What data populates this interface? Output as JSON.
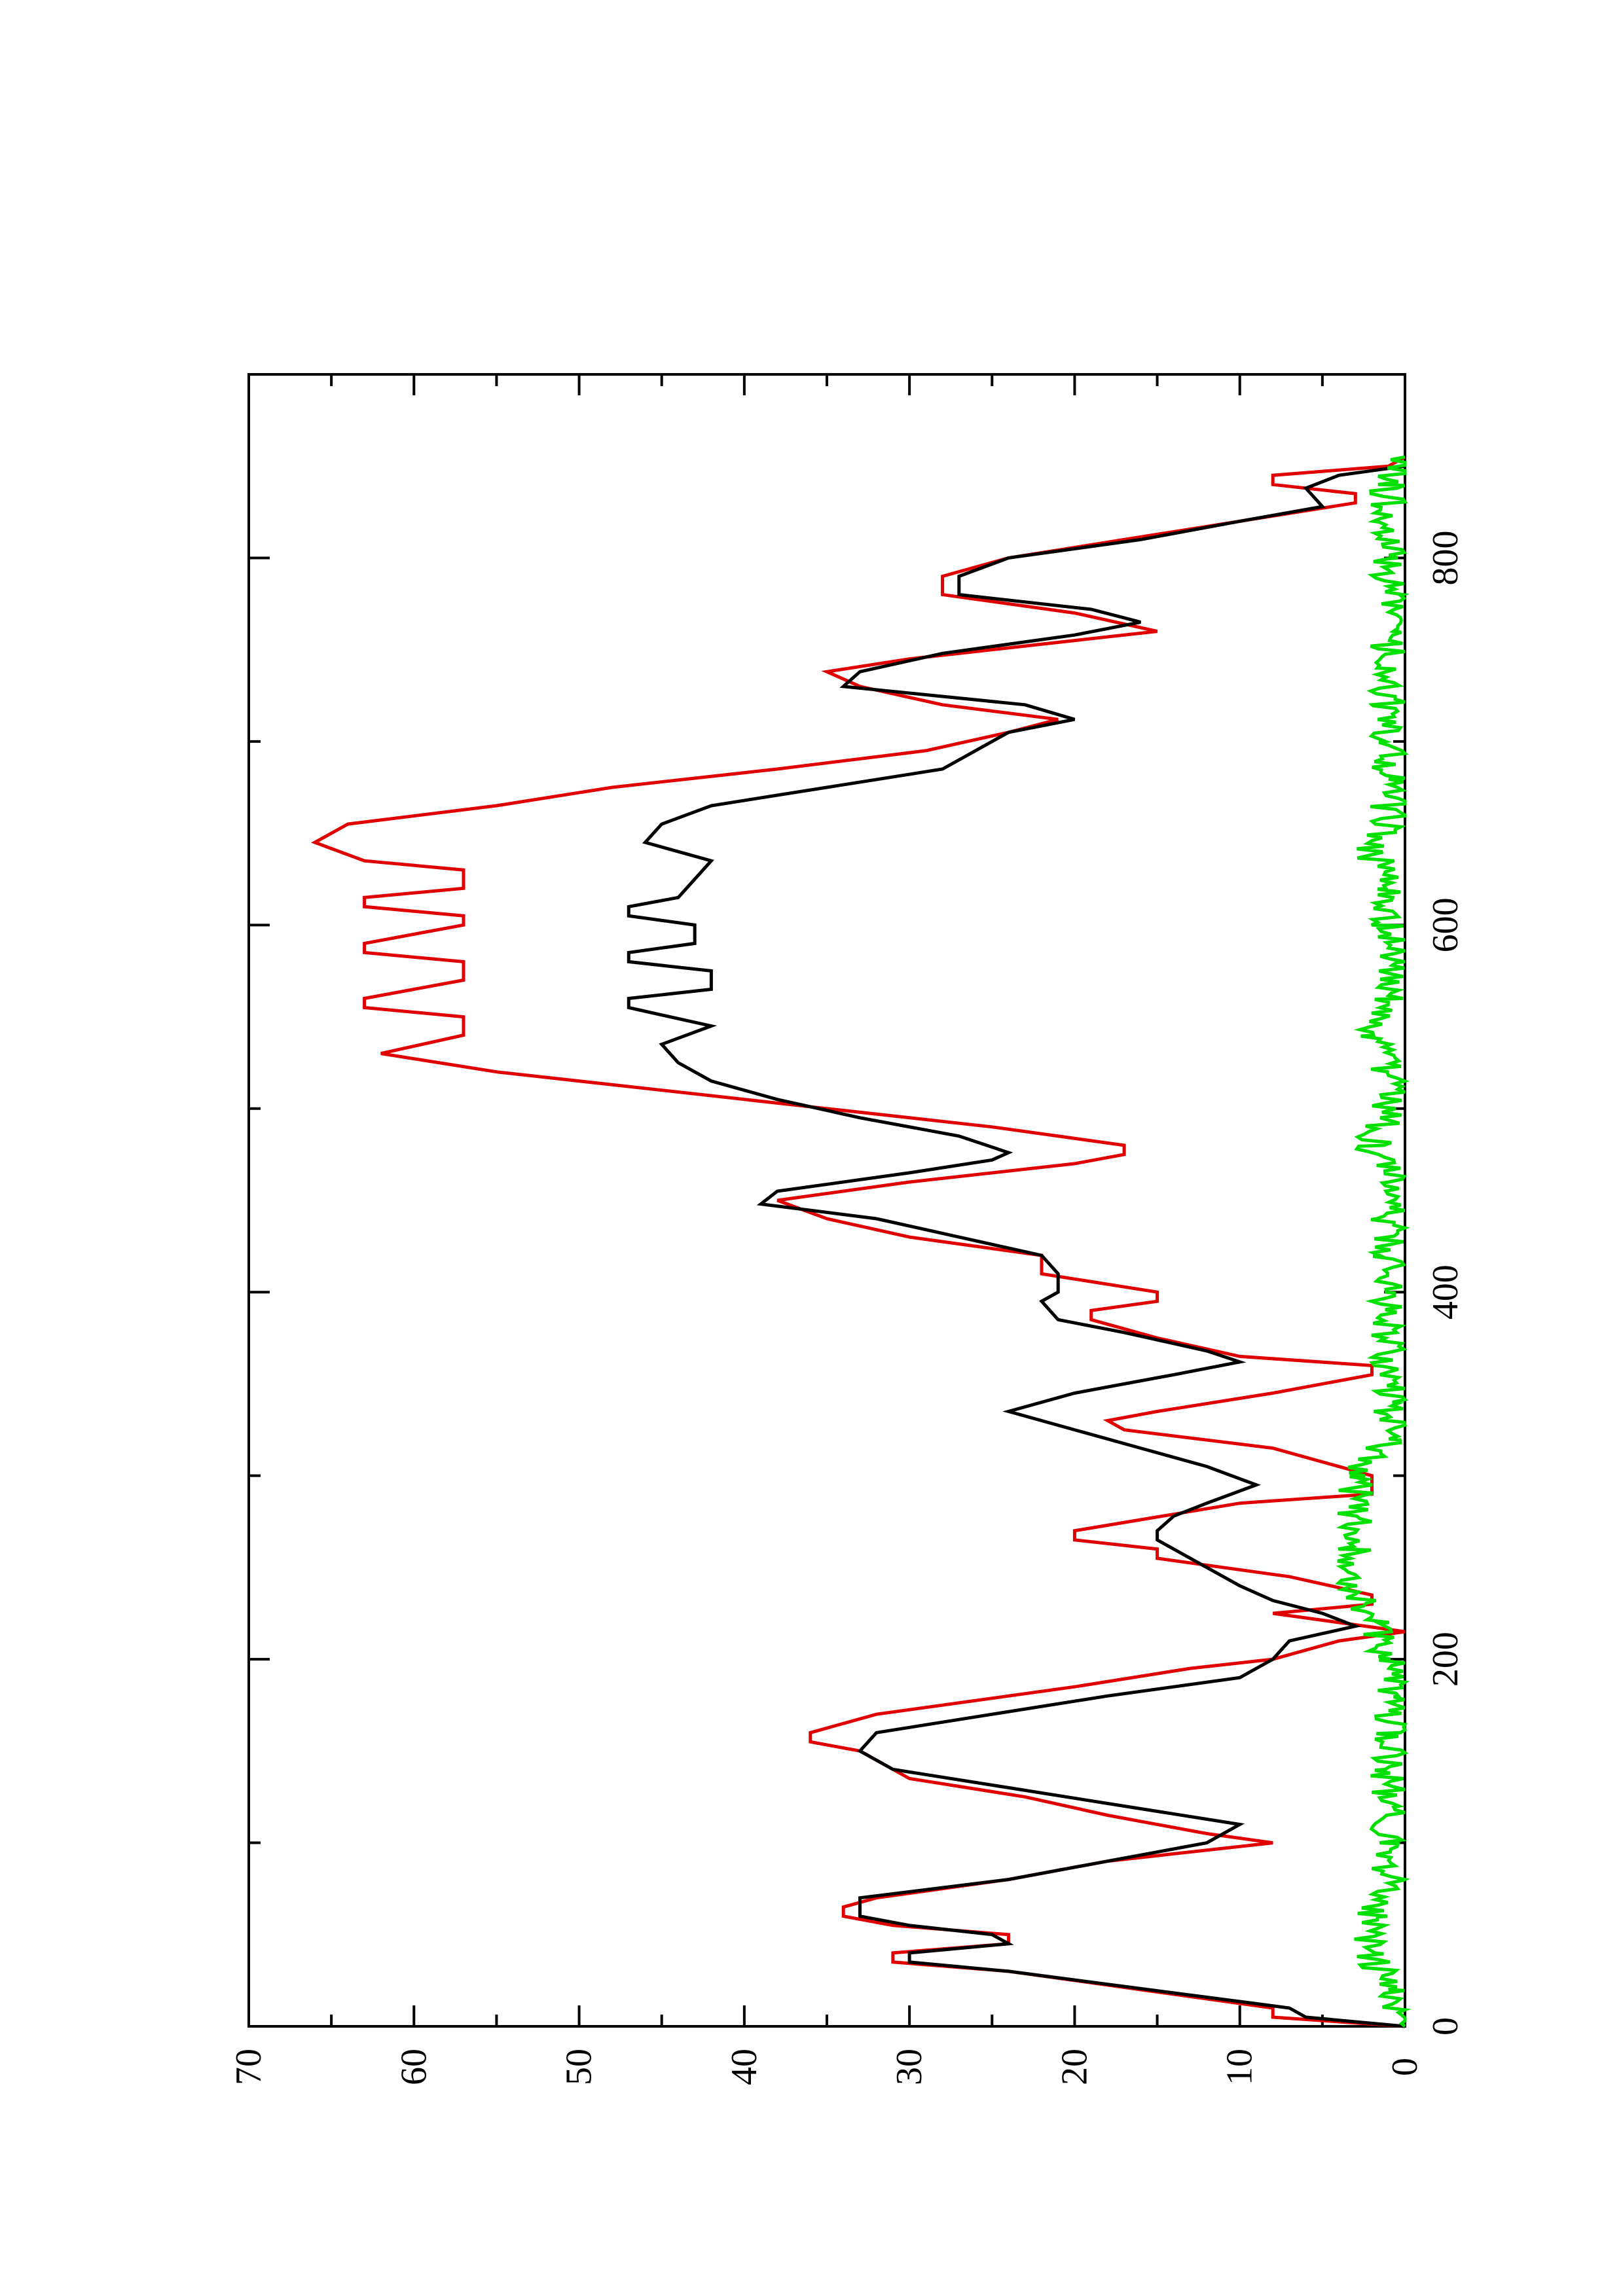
{
  "chart_data": {
    "type": "line",
    "orientation": "rotated-90-ccw",
    "title": "",
    "xlabel": "",
    "ylabel": "",
    "xlim": [
      0,
      900
    ],
    "ylim": [
      0,
      70
    ],
    "x_ticks": [
      {
        "value": 0,
        "label": "0"
      },
      {
        "value": 200,
        "label": "200"
      },
      {
        "value": 400,
        "label": "400"
      },
      {
        "value": 600,
        "label": "600"
      },
      {
        "value": 800,
        "label": "800"
      }
    ],
    "y_ticks": [
      {
        "value": 0,
        "label": "0"
      },
      {
        "value": 10,
        "label": "10"
      },
      {
        "value": 20,
        "label": "20"
      },
      {
        "value": 30,
        "label": "30"
      },
      {
        "value": 40,
        "label": "40"
      },
      {
        "value": 50,
        "label": "50"
      },
      {
        "value": 60,
        "label": "60"
      },
      {
        "value": 70,
        "label": "70"
      }
    ],
    "grid": false,
    "legend": "none",
    "series": [
      {
        "id": "red",
        "color": "#e00000",
        "points": [
          [
            0,
            0
          ],
          [
            5,
            8
          ],
          [
            10,
            8
          ],
          [
            30,
            24
          ],
          [
            35,
            31
          ],
          [
            40,
            31
          ],
          [
            45,
            24
          ],
          [
            50,
            24
          ],
          [
            55,
            31
          ],
          [
            60,
            34
          ],
          [
            65,
            34
          ],
          [
            70,
            32
          ],
          [
            80,
            24
          ],
          [
            90,
            18
          ],
          [
            100,
            8
          ],
          [
            105,
            12
          ],
          [
            115,
            18
          ],
          [
            125,
            23
          ],
          [
            135,
            30
          ],
          [
            150,
            33
          ],
          [
            155,
            36
          ],
          [
            160,
            36
          ],
          [
            170,
            32
          ],
          [
            185,
            20
          ],
          [
            195,
            13
          ],
          [
            200,
            8
          ],
          [
            210,
            4
          ],
          [
            215,
            0
          ],
          [
            225,
            8
          ],
          [
            230,
            2
          ],
          [
            235,
            2
          ],
          [
            245,
            7
          ],
          [
            255,
            15
          ],
          [
            260,
            15
          ],
          [
            265,
            20
          ],
          [
            270,
            20
          ],
          [
            285,
            10
          ],
          [
            290,
            2
          ],
          [
            300,
            2
          ],
          [
            315,
            8
          ],
          [
            325,
            17
          ],
          [
            330,
            18
          ],
          [
            335,
            15
          ],
          [
            345,
            8
          ],
          [
            355,
            2
          ],
          [
            360,
            2
          ],
          [
            365,
            10
          ],
          [
            375,
            15
          ],
          [
            385,
            19
          ],
          [
            390,
            19
          ],
          [
            395,
            15
          ],
          [
            400,
            15
          ],
          [
            410,
            22
          ],
          [
            420,
            22
          ],
          [
            430,
            30
          ],
          [
            440,
            35
          ],
          [
            450,
            38
          ],
          [
            460,
            30
          ],
          [
            470,
            20
          ],
          [
            475,
            17
          ],
          [
            480,
            17
          ],
          [
            490,
            25
          ],
          [
            500,
            35
          ],
          [
            510,
            45
          ],
          [
            520,
            55
          ],
          [
            530,
            62
          ],
          [
            540,
            57
          ],
          [
            550,
            57
          ],
          [
            555,
            63
          ],
          [
            560,
            63
          ],
          [
            570,
            57
          ],
          [
            580,
            57
          ],
          [
            585,
            63
          ],
          [
            590,
            63
          ],
          [
            600,
            57
          ],
          [
            605,
            57
          ],
          [
            610,
            63
          ],
          [
            615,
            63
          ],
          [
            620,
            57
          ],
          [
            625,
            57
          ],
          [
            630,
            57
          ],
          [
            635,
            63
          ],
          [
            645,
            66
          ],
          [
            655,
            64
          ],
          [
            665,
            55
          ],
          [
            675,
            48
          ],
          [
            685,
            38
          ],
          [
            695,
            29
          ],
          [
            705,
            24
          ],
          [
            712,
            21
          ],
          [
            720,
            28
          ],
          [
            730,
            33
          ],
          [
            738,
            35
          ],
          [
            745,
            30
          ],
          [
            755,
            20
          ],
          [
            760,
            15
          ],
          [
            770,
            20
          ],
          [
            780,
            28
          ],
          [
            790,
            28
          ],
          [
            800,
            24
          ],
          [
            810,
            17
          ],
          [
            820,
            10
          ],
          [
            830,
            3
          ],
          [
            835,
            3
          ],
          [
            840,
            8
          ],
          [
            845,
            8
          ],
          [
            850,
            1
          ],
          [
            855,
            0
          ]
        ]
      },
      {
        "id": "black",
        "color": "#000000",
        "points": [
          [
            0,
            0
          ],
          [
            5,
            6
          ],
          [
            10,
            7
          ],
          [
            30,
            24
          ],
          [
            35,
            30
          ],
          [
            40,
            30
          ],
          [
            45,
            24
          ],
          [
            50,
            25
          ],
          [
            55,
            30
          ],
          [
            60,
            33
          ],
          [
            70,
            33
          ],
          [
            80,
            24
          ],
          [
            90,
            18
          ],
          [
            100,
            12
          ],
          [
            110,
            10
          ],
          [
            120,
            17
          ],
          [
            130,
            24
          ],
          [
            140,
            31
          ],
          [
            150,
            33
          ],
          [
            160,
            32
          ],
          [
            170,
            25
          ],
          [
            180,
            18
          ],
          [
            190,
            10
          ],
          [
            200,
            8
          ],
          [
            210,
            7
          ],
          [
            218,
            3
          ],
          [
            225,
            5
          ],
          [
            232,
            8
          ],
          [
            240,
            10
          ],
          [
            250,
            12
          ],
          [
            260,
            14
          ],
          [
            265,
            15
          ],
          [
            270,
            15
          ],
          [
            278,
            14
          ],
          [
            285,
            12
          ],
          [
            295,
            9
          ],
          [
            305,
            12
          ],
          [
            315,
            16
          ],
          [
            325,
            20
          ],
          [
            335,
            24
          ],
          [
            345,
            20
          ],
          [
            355,
            14
          ],
          [
            362,
            10
          ],
          [
            368,
            12
          ],
          [
            378,
            17
          ],
          [
            385,
            21
          ],
          [
            395,
            22
          ],
          [
            400,
            21
          ],
          [
            410,
            21
          ],
          [
            420,
            22
          ],
          [
            430,
            27
          ],
          [
            440,
            32
          ],
          [
            448,
            39
          ],
          [
            455,
            38
          ],
          [
            465,
            30
          ],
          [
            472,
            25
          ],
          [
            476,
            24
          ],
          [
            485,
            27
          ],
          [
            495,
            33
          ],
          [
            505,
            38
          ],
          [
            515,
            42
          ],
          [
            525,
            44
          ],
          [
            535,
            45
          ],
          [
            545,
            42
          ],
          [
            555,
            47
          ],
          [
            560,
            47
          ],
          [
            565,
            42
          ],
          [
            575,
            42
          ],
          [
            580,
            47
          ],
          [
            585,
            47
          ],
          [
            590,
            43
          ],
          [
            600,
            43
          ],
          [
            605,
            47
          ],
          [
            610,
            47
          ],
          [
            615,
            44
          ],
          [
            625,
            43
          ],
          [
            635,
            42
          ],
          [
            645,
            46
          ],
          [
            655,
            45
          ],
          [
            665,
            42
          ],
          [
            675,
            35
          ],
          [
            685,
            28
          ],
          [
            695,
            26
          ],
          [
            705,
            24
          ],
          [
            712,
            20
          ],
          [
            720,
            23
          ],
          [
            730,
            34
          ],
          [
            738,
            33
          ],
          [
            748,
            28
          ],
          [
            758,
            20
          ],
          [
            765,
            16
          ],
          [
            772,
            19
          ],
          [
            780,
            27
          ],
          [
            790,
            27
          ],
          [
            800,
            24
          ],
          [
            810,
            16
          ],
          [
            820,
            10
          ],
          [
            828,
            5
          ],
          [
            838,
            6
          ],
          [
            845,
            4
          ],
          [
            850,
            0
          ]
        ]
      },
      {
        "id": "green",
        "color": "#00e000",
        "style": "noisy-baseline",
        "points": [
          [
            0,
            0
          ],
          [
            20,
            1
          ],
          [
            40,
            2
          ],
          [
            60,
            2
          ],
          [
            80,
            1
          ],
          [
            100,
            1
          ],
          [
            120,
            1
          ],
          [
            140,
            1
          ],
          [
            160,
            1
          ],
          [
            180,
            1
          ],
          [
            200,
            1
          ],
          [
            220,
            2
          ],
          [
            240,
            3
          ],
          [
            260,
            3
          ],
          [
            280,
            3
          ],
          [
            300,
            3
          ],
          [
            320,
            1
          ],
          [
            340,
            1
          ],
          [
            360,
            1
          ],
          [
            380,
            1
          ],
          [
            400,
            1
          ],
          [
            420,
            1
          ],
          [
            440,
            1
          ],
          [
            460,
            1
          ],
          [
            480,
            2
          ],
          [
            500,
            1
          ],
          [
            520,
            1
          ],
          [
            540,
            2
          ],
          [
            560,
            1
          ],
          [
            580,
            1
          ],
          [
            600,
            1
          ],
          [
            620,
            1
          ],
          [
            640,
            2
          ],
          [
            660,
            1
          ],
          [
            680,
            1
          ],
          [
            700,
            1
          ],
          [
            720,
            1
          ],
          [
            740,
            1
          ],
          [
            760,
            1
          ],
          [
            780,
            1
          ],
          [
            800,
            1
          ],
          [
            820,
            1
          ],
          [
            840,
            1
          ],
          [
            855,
            0
          ]
        ]
      }
    ]
  }
}
